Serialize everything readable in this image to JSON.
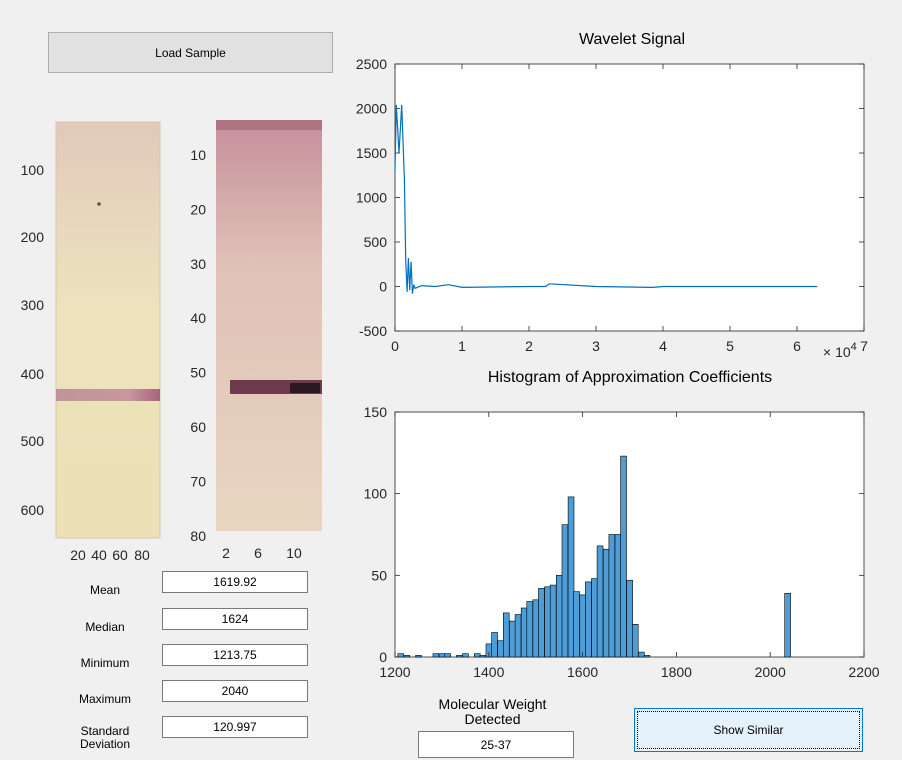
{
  "buttons": {
    "load_sample": "Load Sample",
    "show_similar": "Show Similar"
  },
  "image1": {
    "y_ticks": [
      "100",
      "200",
      "300",
      "400",
      "500",
      "600"
    ],
    "x_ticks": [
      "20",
      "40",
      "60",
      "80"
    ]
  },
  "image2": {
    "y_ticks": [
      "10",
      "20",
      "30",
      "40",
      "50",
      "60",
      "70",
      "80"
    ],
    "x_ticks": [
      "2",
      "6",
      "10"
    ]
  },
  "stats": [
    {
      "label": "Mean",
      "value": "1619.92"
    },
    {
      "label": "Median",
      "value": "1624"
    },
    {
      "label": "Minimum",
      "value": "1213.75"
    },
    {
      "label": "Maximum",
      "value": "2040"
    },
    {
      "label": "Standard\nDeviation",
      "value": "120.997"
    }
  ],
  "molecular_weight": {
    "label": "Molecular Weight\nDetected",
    "value": "25-37"
  },
  "colors": {
    "series": "#0072bd",
    "hist_fill": "#4d9ed8",
    "hist_edge": "#000000"
  },
  "chart_data": [
    {
      "type": "line",
      "title": "Wavelet Signal",
      "xlabel": "",
      "ylabel": "",
      "xlim": [
        0,
        70000
      ],
      "ylim": [
        -500,
        2500
      ],
      "x_tick_labels": [
        "0",
        "1",
        "2",
        "3",
        "4",
        "5",
        "6",
        "7"
      ],
      "x_exponent_label": "× 10",
      "x_exponent": "4",
      "y_tick_labels": [
        "-500",
        "0",
        "500",
        "1000",
        "1500",
        "2000",
        "2500"
      ],
      "series": [
        {
          "x": [
            0,
            200,
            600,
            1000,
            1400,
            1600,
            1800,
            2000,
            2200,
            2400,
            2600,
            2800,
            3000,
            4000,
            6000,
            8000,
            10000,
            20000,
            22500,
            23000,
            30000,
            38500,
            40000,
            50000,
            63000
          ],
          "y": [
            1300,
            2040,
            1500,
            2040,
            1200,
            300,
            -60,
            320,
            -40,
            280,
            -80,
            20,
            -20,
            10,
            0,
            20,
            -10,
            0,
            0,
            30,
            0,
            -10,
            0,
            0,
            0
          ]
        }
      ]
    },
    {
      "type": "bar",
      "title": "Histogram of Approximation Coefficients",
      "xlabel": "",
      "ylabel": "",
      "xlim": [
        1200,
        2200
      ],
      "ylim": [
        0,
        150
      ],
      "x_tick_labels": [
        "1200",
        "1400",
        "1600",
        "1800",
        "2000",
        "2200"
      ],
      "y_tick_labels": [
        "0",
        "50",
        "100",
        "150"
      ],
      "bin_width": 12.5,
      "bin_starts": [
        1206,
        1219,
        1244,
        1281,
        1294,
        1306,
        1331,
        1344,
        1369,
        1381,
        1394,
        1406,
        1419,
        1431,
        1444,
        1456,
        1469,
        1481,
        1494,
        1506,
        1519,
        1531,
        1544,
        1556,
        1569,
        1581,
        1594,
        1606,
        1619,
        1631,
        1644,
        1656,
        1669,
        1681,
        1694,
        1706,
        1719,
        1731,
        2031
      ],
      "counts": [
        2,
        1,
        1,
        2,
        2,
        2,
        1,
        2,
        2,
        1,
        8,
        15,
        10,
        27,
        22,
        26,
        30,
        34,
        35,
        42,
        43,
        44,
        50,
        81,
        98,
        40,
        38,
        46,
        48,
        68,
        66,
        75,
        75,
        123,
        47,
        20,
        3,
        1,
        39
      ]
    }
  ]
}
